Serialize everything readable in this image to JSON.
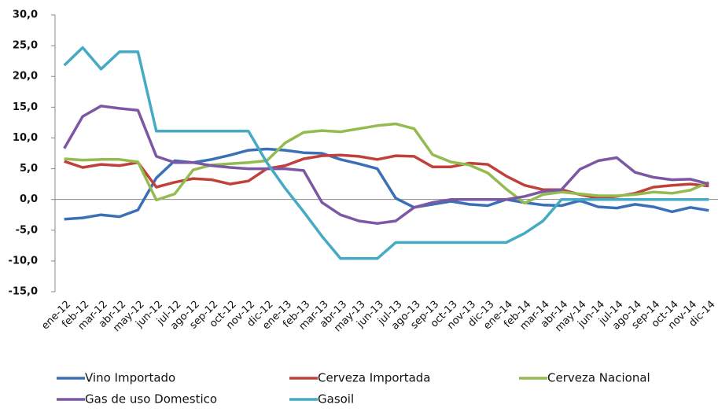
{
  "chart_data": {
    "type": "line",
    "categories": [
      "ene-12",
      "feb-12",
      "mar-12",
      "abr-12",
      "may-12",
      "jun-12",
      "jul-12",
      "ago-12",
      "sep-12",
      "oct-12",
      "nov-12",
      "dic-12",
      "ene-13",
      "feb-13",
      "mar-13",
      "abr-13",
      "may-13",
      "jun-13",
      "jul-13",
      "ago-13",
      "sep-13",
      "oct-13",
      "nov-13",
      "dic-13",
      "ene-14",
      "feb-14",
      "mar-14",
      "abr-14",
      "may-14",
      "jun-14",
      "jul-14",
      "ago-14",
      "sep-14",
      "oct-14",
      "nov-14",
      "dic-14"
    ],
    "series": [
      {
        "name": "Vino Importado",
        "color": "#3b6fb6",
        "values": [
          -3.2,
          -3.0,
          -2.5,
          -2.8,
          -1.7,
          3.5,
          6.3,
          6.0,
          6.5,
          7.2,
          8.0,
          8.2,
          8.0,
          7.6,
          7.5,
          6.5,
          5.8,
          5.0,
          0.2,
          -1.3,
          -0.8,
          -0.3,
          -0.8,
          -1.0,
          0.0,
          -0.5,
          -0.9,
          -1.0,
          -0.2,
          -1.2,
          -1.4,
          -0.8,
          -1.2,
          -2.0,
          -1.3,
          -1.8
        ]
      },
      {
        "name": "Cerveza Importada",
        "color": "#c0413b",
        "values": [
          6.2,
          5.2,
          5.7,
          5.5,
          6.0,
          2.0,
          2.8,
          3.4,
          3.2,
          2.5,
          3.0,
          5.0,
          5.5,
          6.6,
          7.1,
          7.2,
          7.0,
          6.5,
          7.1,
          7.0,
          5.3,
          5.3,
          5.9,
          5.7,
          3.8,
          2.3,
          1.6,
          1.6,
          0.8,
          0.2,
          0.5,
          1.0,
          2.0,
          2.3,
          2.5,
          2.2
        ]
      },
      {
        "name": "Cerveza Nacional",
        "color": "#93bb4f",
        "values": [
          6.6,
          6.4,
          6.5,
          6.5,
          6.1,
          -0.1,
          0.9,
          4.8,
          5.6,
          5.8,
          6.0,
          6.3,
          9.2,
          10.9,
          11.2,
          11.0,
          11.5,
          12.0,
          12.3,
          11.5,
          7.3,
          6.1,
          5.6,
          4.3,
          1.7,
          -0.6,
          0.8,
          1.2,
          0.9,
          0.6,
          0.6,
          0.8,
          1.2,
          1.0,
          1.5,
          2.8
        ]
      },
      {
        "name": "Gas de uso Domestico",
        "color": "#7c57a3",
        "values": [
          8.3,
          13.5,
          15.2,
          14.8,
          14.5,
          7.0,
          6.0,
          6.0,
          5.5,
          5.2,
          5.0,
          5.0,
          5.0,
          4.7,
          -0.5,
          -2.5,
          -3.5,
          -3.9,
          -3.5,
          -1.3,
          -0.5,
          0.0,
          0.0,
          0.0,
          0.0,
          0.5,
          1.3,
          1.6,
          4.9,
          6.3,
          6.8,
          4.4,
          3.6,
          3.2,
          3.3,
          2.5
        ]
      },
      {
        "name": "Gasoil",
        "color": "#45aac4",
        "values": [
          21.8,
          24.7,
          21.2,
          24.0,
          24.0,
          11.1,
          11.1,
          11.1,
          11.1,
          11.1,
          11.1,
          6.0,
          1.8,
          -2.0,
          -6.0,
          -9.6,
          -9.6,
          -9.6,
          -7.0,
          -7.0,
          -7.0,
          -7.0,
          -7.0,
          -7.0,
          -7.0,
          -5.5,
          -3.5,
          0.0,
          0.0,
          0.0,
          0.0,
          0.0,
          0.0,
          0.0,
          0.0,
          0.0
        ]
      }
    ],
    "ylim": [
      -15,
      30
    ],
    "yticks": [
      {
        "value": -15,
        "label": "-15,0"
      },
      {
        "value": -10,
        "label": "-10,0"
      },
      {
        "value": -5,
        "label": "-5,0"
      },
      {
        "value": 0,
        "label": "0,0"
      },
      {
        "value": 5,
        "label": "5,0"
      },
      {
        "value": 10,
        "label": "10,0"
      },
      {
        "value": 15,
        "label": "15,0"
      },
      {
        "value": 20,
        "label": "20,0"
      },
      {
        "value": 25,
        "label": "25,0"
      },
      {
        "value": 30,
        "label": "30,0"
      }
    ],
    "grid": false
  }
}
